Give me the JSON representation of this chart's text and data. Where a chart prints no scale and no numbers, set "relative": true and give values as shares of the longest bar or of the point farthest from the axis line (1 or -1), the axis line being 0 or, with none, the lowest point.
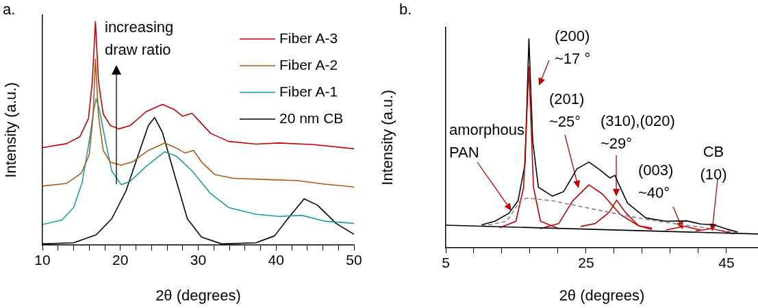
{
  "chart_data": [
    {
      "type": "line",
      "title": "a.",
      "xlabel": "2θ (degrees)",
      "ylabel": "Intensity (a.u.)",
      "relative": true,
      "legend": "top right",
      "xlim": [
        10,
        50
      ],
      "xticks": [
        10,
        {
          "value": 12,
          "label": null
        },
        {
          "value": 14,
          "label": null
        },
        {
          "value": 16,
          "label": null
        },
        {
          "value": 18,
          "label": null
        },
        20,
        {
          "value": 22,
          "label": null
        },
        {
          "value": 24,
          "label": null
        },
        {
          "value": 26,
          "label": null
        },
        {
          "value": 28,
          "label": null
        },
        30,
        {
          "value": 32,
          "label": null
        },
        {
          "value": 34,
          "label": null
        },
        {
          "value": 36,
          "label": null
        },
        {
          "value": 38,
          "label": null
        },
        40,
        {
          "value": 42,
          "label": null
        },
        {
          "value": 44,
          "label": null
        },
        {
          "value": 46,
          "label": null
        },
        {
          "value": 48,
          "label": null
        },
        50
      ],
      "annotations": [
        "increasing\ndraw ratio"
      ],
      "series": [
        {
          "name": "Fiber A-3",
          "color": "#c00000",
          "x": [
            10,
            13.1,
            14.8,
            15.9,
            16.4,
            16.8,
            17.2,
            17.8,
            18.7,
            19.8,
            21.3,
            23.3,
            25.4,
            26.9,
            28.0,
            29.2,
            30.1,
            31.6,
            33.9,
            37.4,
            40.4,
            44.8,
            50
          ],
          "values": [
            0.436,
            0.454,
            0.485,
            0.566,
            0.73,
            1.0,
            0.73,
            0.587,
            0.536,
            0.52,
            0.536,
            0.597,
            0.63,
            0.607,
            0.577,
            0.59,
            0.556,
            0.5,
            0.464,
            0.452,
            0.457,
            0.45,
            0.431
          ]
        },
        {
          "name": "Fiber A-2",
          "color": "#a65a1e",
          "x": [
            10,
            13.1,
            15.0,
            16.0,
            16.5,
            16.8,
            17.2,
            17.8,
            18.7,
            20.1,
            21.6,
            23.6,
            25.7,
            27.2,
            28.3,
            29.4,
            30.4,
            32.1,
            34.5,
            38.9,
            42.7,
            46.2,
            50
          ],
          "values": [
            0.264,
            0.276,
            0.322,
            0.404,
            0.578,
            0.833,
            0.578,
            0.424,
            0.371,
            0.358,
            0.373,
            0.424,
            0.457,
            0.434,
            0.412,
            0.424,
            0.373,
            0.316,
            0.299,
            0.293,
            0.289,
            0.273,
            0.26
          ]
        },
        {
          "name": "Fiber A-1",
          "color": "#1a9e9e",
          "x": [
            10,
            12.5,
            14.0,
            15.1,
            16.0,
            16.6,
            16.9,
            17.3,
            18.1,
            18.9,
            20.1,
            21.3,
            23.3,
            25.7,
            27.2,
            29.2,
            31.6,
            33.9,
            37.4,
            40.4,
            43.3,
            46.2,
            50
          ],
          "values": [
            0.092,
            0.112,
            0.168,
            0.281,
            0.464,
            0.607,
            0.656,
            0.607,
            0.464,
            0.332,
            0.27,
            0.286,
            0.352,
            0.418,
            0.398,
            0.332,
            0.23,
            0.168,
            0.138,
            0.128,
            0.133,
            0.107,
            0.097
          ]
        },
        {
          "name": "20 nm CB",
          "color": "#000000",
          "x": [
            10,
            14.0,
            16.9,
            18.9,
            20.7,
            22.5,
            23.6,
            24.4,
            25.4,
            26.9,
            28.6,
            30.4,
            33.0,
            37.4,
            39.8,
            41.5,
            43.6,
            45.3,
            47.7,
            50
          ],
          "values": [
            0.005,
            0.01,
            0.046,
            0.118,
            0.24,
            0.424,
            0.536,
            0.571,
            0.505,
            0.322,
            0.118,
            0.036,
            0.005,
            0.01,
            0.041,
            0.118,
            0.207,
            0.179,
            0.097,
            0.048
          ]
        }
      ]
    },
    {
      "type": "line",
      "title": "b.",
      "xlabel": "2θ (degrees)",
      "ylabel": "Intensity (a.u.)",
      "relative": true,
      "xlim": [
        5,
        49.5
      ],
      "xticks": [
        5,
        {
          "value": 9,
          "label": null
        },
        {
          "value": 13,
          "label": null
        },
        {
          "value": 17,
          "label": null
        },
        {
          "value": 21,
          "label": null
        },
        25,
        {
          "value": 29,
          "label": null
        },
        {
          "value": 33,
          "label": null
        },
        {
          "value": 37,
          "label": null
        },
        {
          "value": 41,
          "label": null
        },
        45
      ],
      "annotations": [
        "(200)\n~17 °",
        "(201)\n~25°",
        "(310),(020)\n~29°",
        "(003)\n~40°",
        "CB\n(10)",
        "amorphous\nPAN"
      ],
      "series": [
        {
          "color": "#000000",
          "x": [
            5,
            49.5
          ],
          "values": [
            0.108,
            0.066
          ]
        },
        {
          "color": "#808080",
          "line_style": "dashed",
          "x": [
            10.1,
            13.7,
            15.6,
            16.6,
            20.2,
            23.4,
            26.7,
            31.5,
            36.4,
            41.3,
            46.5
          ],
          "values": [
            0.103,
            0.127,
            0.225,
            0.238,
            0.225,
            0.203,
            0.181,
            0.148,
            0.121,
            0.099,
            0.072
          ]
        },
        {
          "color": "#c00000",
          "x": [
            12.7,
            15.0,
            16.1,
            16.85,
            17.5,
            18.5,
            21.1
          ],
          "values": [
            0.096,
            0.127,
            0.29,
            0.864,
            0.29,
            0.127,
            0.092
          ]
        },
        {
          "color": "#c00000",
          "x": [
            18.5,
            21.1,
            23.1,
            25.4,
            27.3,
            29.9,
            32.5,
            34.4
          ],
          "values": [
            0.092,
            0.116,
            0.225,
            0.301,
            0.258,
            0.159,
            0.105,
            0.094
          ]
        },
        {
          "color": "#c00000",
          "x": [
            24.2,
            26.3,
            28.3,
            29.35,
            30.6,
            32.5,
            34.4
          ],
          "values": [
            0.102,
            0.116,
            0.17,
            0.228,
            0.17,
            0.105,
            0.088
          ]
        },
        {
          "color": "#c00000",
          "x": [
            36.4,
            39.0,
            41.3
          ],
          "values": [
            0.085,
            0.103,
            0.085
          ]
        },
        {
          "color": "#c00000",
          "x": [
            40.6,
            42.9,
            46.1
          ],
          "values": [
            0.08,
            0.092,
            0.067
          ]
        },
        {
          "color": "#000000",
          "x": [
            10.1,
            12.0,
            14.0,
            15.3,
            16.3,
            16.85,
            17.4,
            18.2,
            20.2,
            21.8,
            23.7,
            25.4,
            27.0,
            28.4,
            29.1,
            29.7,
            30.9,
            33.5,
            36.4,
            39.3,
            41.3,
            43.2,
            45.2,
            46.6
          ],
          "values": [
            0.11,
            0.127,
            0.165,
            0.225,
            0.4,
            1.0,
            0.509,
            0.29,
            0.247,
            0.269,
            0.378,
            0.41,
            0.372,
            0.334,
            0.347,
            0.301,
            0.214,
            0.143,
            0.127,
            0.129,
            0.114,
            0.11,
            0.088,
            0.075
          ]
        }
      ]
    }
  ]
}
